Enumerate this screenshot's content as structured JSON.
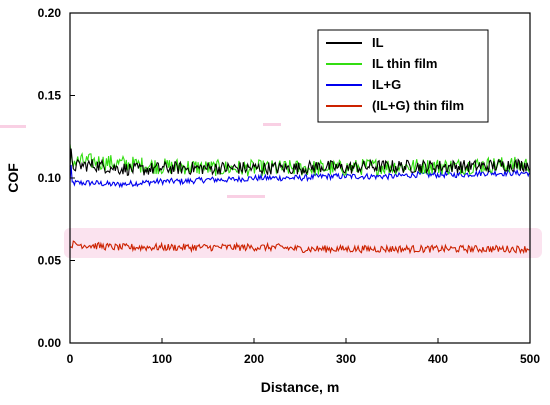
{
  "chart_data": {
    "type": "line",
    "xlabel": "Distance, m",
    "ylabel": "COF",
    "xlim": [
      0,
      500
    ],
    "ylim": [
      0.0,
      0.2
    ],
    "xticks": [
      "0",
      "100",
      "200",
      "300",
      "400",
      "500"
    ],
    "yticks": [
      "0.00",
      "0.05",
      "0.10",
      "0.15",
      "0.20"
    ],
    "grid": false,
    "legend_position": "top-right",
    "series": [
      {
        "name": "IL",
        "color": "#000000",
        "x": [
          0,
          25,
          50,
          75,
          100,
          125,
          150,
          175,
          200,
          225,
          250,
          275,
          300,
          325,
          350,
          375,
          400,
          425,
          450,
          475,
          500
        ],
        "y": [
          0.107,
          0.108,
          0.106,
          0.105,
          0.106,
          0.106,
          0.106,
          0.106,
          0.106,
          0.106,
          0.106,
          0.107,
          0.106,
          0.107,
          0.107,
          0.107,
          0.107,
          0.107,
          0.107,
          0.108,
          0.108
        ],
        "noise": 0.004
      },
      {
        "name": "IL thin film",
        "color": "#33dd11",
        "x": [
          0,
          25,
          50,
          75,
          100,
          125,
          150,
          175,
          200,
          225,
          250,
          275,
          300,
          325,
          350,
          375,
          400,
          425,
          450,
          475,
          500
        ],
        "y": [
          0.11,
          0.11,
          0.109,
          0.108,
          0.107,
          0.107,
          0.106,
          0.106,
          0.106,
          0.106,
          0.106,
          0.106,
          0.106,
          0.107,
          0.107,
          0.107,
          0.107,
          0.107,
          0.108,
          0.108,
          0.108
        ],
        "noise": 0.005
      },
      {
        "name": "IL+G",
        "color": "#0000ee",
        "x": [
          0,
          25,
          50,
          75,
          100,
          125,
          150,
          175,
          200,
          225,
          250,
          275,
          300,
          325,
          350,
          375,
          400,
          425,
          450,
          475,
          500
        ],
        "y": [
          0.097,
          0.097,
          0.096,
          0.097,
          0.098,
          0.098,
          0.099,
          0.099,
          0.1,
          0.1,
          0.1,
          0.101,
          0.101,
          0.101,
          0.101,
          0.102,
          0.102,
          0.102,
          0.103,
          0.103,
          0.103
        ],
        "noise": 0.0018
      },
      {
        "name": "(IL+G) thin film",
        "color": "#cc2200",
        "x": [
          0,
          25,
          50,
          75,
          100,
          125,
          150,
          175,
          200,
          225,
          250,
          275,
          300,
          325,
          350,
          375,
          400,
          425,
          450,
          475,
          500
        ],
        "y": [
          0.06,
          0.059,
          0.058,
          0.058,
          0.058,
          0.058,
          0.058,
          0.058,
          0.058,
          0.058,
          0.057,
          0.057,
          0.057,
          0.057,
          0.057,
          0.057,
          0.057,
          0.057,
          0.057,
          0.057,
          0.057
        ],
        "noise": 0.0022
      }
    ]
  }
}
